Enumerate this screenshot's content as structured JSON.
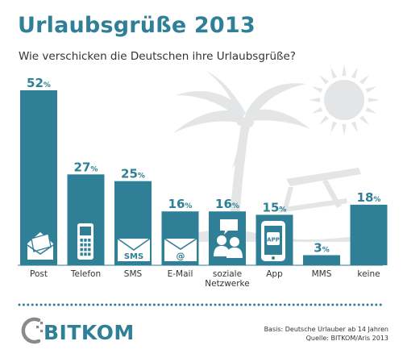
{
  "header": {
    "title": "Urlaubsgrüße 2013",
    "subtitle": "Wie verschicken die Deutschen ihre Urlaubsgrüße?"
  },
  "chart_data": {
    "type": "bar",
    "title": "Urlaubsgrüße 2013",
    "subtitle": "Wie verschicken die Deutschen ihre Urlaubsgrüße?",
    "categories": [
      "Post",
      "Telefon",
      "SMS",
      "E-Mail",
      "soziale Netzwerke",
      "App",
      "MMS",
      "keine"
    ],
    "category_label_lines": [
      [
        "Post"
      ],
      [
        "Telefon"
      ],
      [
        "SMS"
      ],
      [
        "E-Mail"
      ],
      [
        "soziale",
        "Netzwerke"
      ],
      [
        "App"
      ],
      [
        "MMS"
      ],
      [
        "keine"
      ]
    ],
    "values": [
      52,
      27,
      25,
      16,
      16,
      15,
      3,
      18
    ],
    "value_unit": "%",
    "icons": [
      "envelope-icon",
      "mobile-phone-icon",
      "sms-envelope-icon",
      "email-envelope-icon",
      "social-network-icon",
      "smartphone-app-icon",
      "",
      ""
    ],
    "icon_labels": {
      "sms": "SMS",
      "email": "@",
      "app": "APP"
    },
    "ylim": [
      0,
      52
    ],
    "grid": false,
    "legend": "none",
    "xlabel": "",
    "ylabel": ""
  },
  "footer": {
    "logo_text": "BITKOM",
    "basis": "Basis: Deutsche Urlauber ab 14 Jahren",
    "source": "Quelle: BITKOM/Aris 2013"
  },
  "colors": {
    "bar": "#2f7f97",
    "title": "#2f7f97",
    "icon_fill": "#ffffff",
    "background_art": "#e3e5e6",
    "dots": "#2f7f97",
    "logo_text": "#2f7f97",
    "logo_mark": "#8a8a8a"
  }
}
